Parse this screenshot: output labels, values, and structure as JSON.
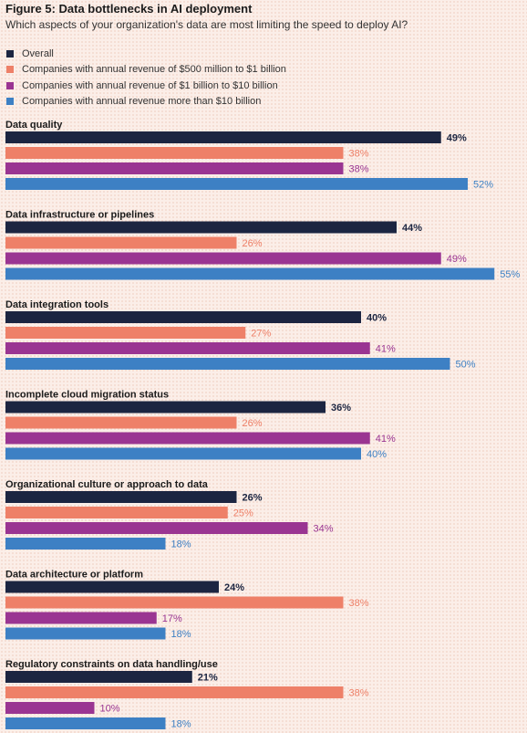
{
  "title": "Figure 5: Data bottlenecks in AI deployment",
  "subtitle": "Which aspects of your organization's data are most limiting the speed to deploy AI?",
  "colors": {
    "overall": "#1c2541",
    "revenue_500m_1b": "#ee8068",
    "revenue_1b_10b": "#9a3592",
    "revenue_over_10b": "#3d80c4"
  },
  "chart_data": {
    "type": "bar",
    "orientation": "horizontal",
    "value_suffix": "%",
    "categories": [
      "Data quality",
      "Data infrastructure or pipelines",
      "Data integration tools",
      "Incomplete cloud migration status",
      "Organizational culture or approach to data",
      "Data architecture or platform",
      "Regulatory constraints on data handling/use"
    ],
    "series": [
      {
        "name": "Overall",
        "values": [
          49,
          44,
          40,
          36,
          26,
          24,
          21
        ]
      },
      {
        "name": "Companies with annual revenue of $500 million to $1 billion",
        "values": [
          38,
          26,
          27,
          26,
          25,
          38,
          38
        ]
      },
      {
        "name": "Companies with annual revenue of $1 billion to $10 billion",
        "values": [
          38,
          49,
          41,
          41,
          34,
          17,
          10
        ]
      },
      {
        "name": "Companies with annual revenue more than $10 billion",
        "values": [
          52,
          55,
          50,
          40,
          18,
          18,
          18
        ]
      }
    ],
    "xlim": [
      0,
      55
    ],
    "grid": false,
    "legend_position": "top-left"
  }
}
